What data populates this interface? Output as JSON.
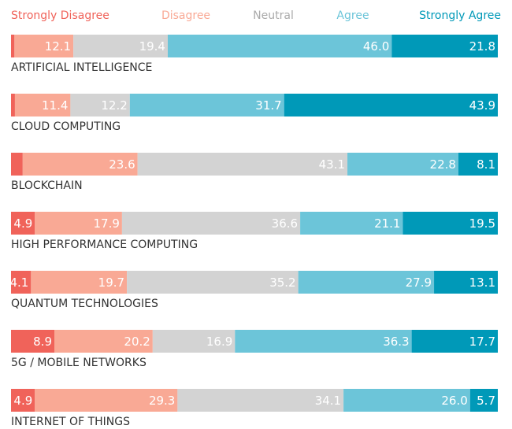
{
  "chart_data": {
    "type": "stacked_bar_horizontal",
    "categories": [
      "ARTIFICIAL INTELLIGENCE",
      "CLOUD COMPUTING",
      "BLOCKCHAIN",
      "HIGH PERFORMANCE COMPUTING",
      "QUANTUM TECHNOLOGIES",
      "5G / MOBILE NETWORKS",
      "INTERNET OF THINGS"
    ],
    "xlim": [
      0,
      100
    ],
    "series": [
      {
        "name": "Strongly Disagree",
        "color": "#f0635a",
        "values": [
          0.7,
          0.8,
          2.4,
          4.9,
          4.1,
          8.9,
          4.9
        ],
        "value_labels": [
          null,
          null,
          null,
          "4.9",
          "4.1",
          "8.9",
          "4.9"
        ]
      },
      {
        "name": "Disagree",
        "color": "#f9a995",
        "values": [
          12.1,
          11.4,
          23.6,
          17.9,
          19.7,
          20.2,
          29.3
        ],
        "value_labels": [
          "12.1",
          "11.4",
          "23.6",
          "17.9",
          "19.7",
          "20.2",
          "29.3"
        ]
      },
      {
        "name": "Neutral",
        "color": "#d3d3d3",
        "values": [
          19.4,
          12.2,
          43.1,
          36.6,
          35.2,
          16.9,
          34.1
        ],
        "value_labels": [
          "19.4",
          "12.2",
          "43.1",
          "36.6",
          "35.2",
          "16.9",
          "34.1"
        ]
      },
      {
        "name": "Agree",
        "color": "#6cc5d9",
        "values": [
          46.0,
          31.7,
          22.8,
          21.1,
          27.9,
          36.3,
          26.0
        ],
        "value_labels": [
          "46.0",
          "31.7",
          "22.8",
          "21.1",
          "27.9",
          "36.3",
          "26.0"
        ]
      },
      {
        "name": "Strongly Agree",
        "color": "#0099b8",
        "values": [
          21.8,
          43.9,
          8.1,
          19.5,
          13.1,
          17.7,
          5.7
        ],
        "value_labels": [
          "21.8",
          "43.9",
          "8.1",
          "19.5",
          "13.1",
          "17.7",
          "5.7"
        ]
      }
    ]
  }
}
